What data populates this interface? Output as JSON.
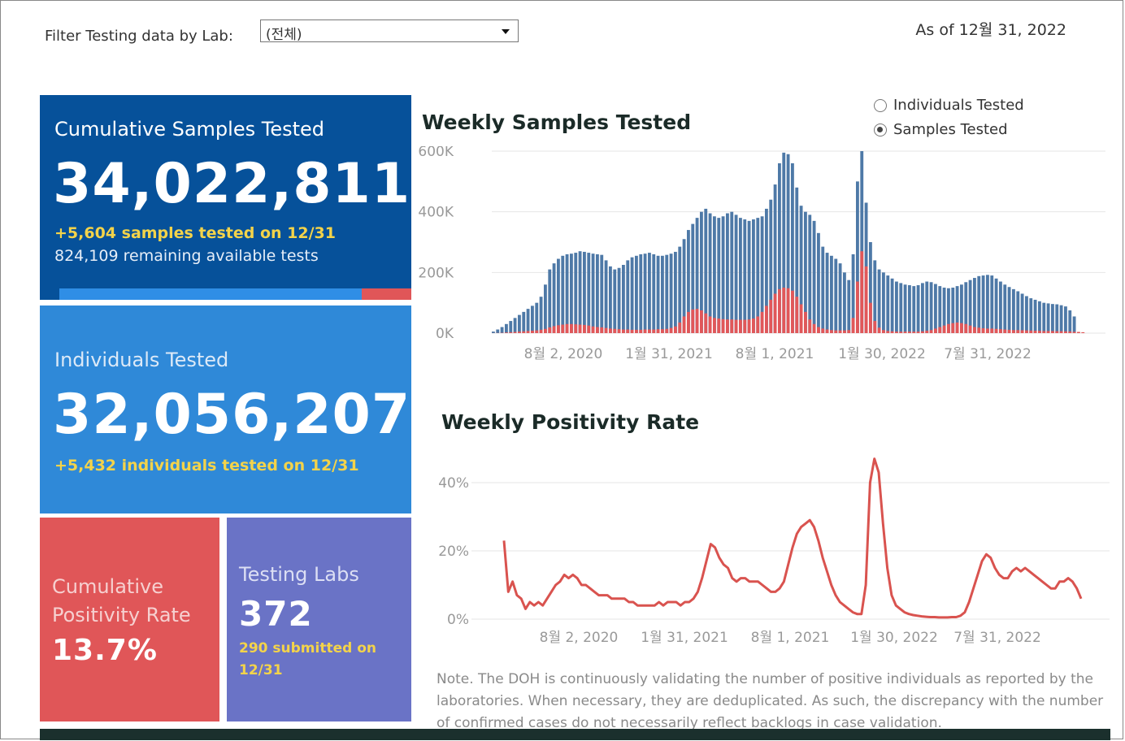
{
  "filter": {
    "label": "Filter Testing data by Lab:",
    "value": "(전체)"
  },
  "as_of": "As of 12월 31, 2022",
  "kpi": {
    "samples": {
      "title": "Cumulative Samples Tested",
      "value": "34,022,811",
      "delta": "+5,604 samples tested on 12/31",
      "remaining": "824,109 remaining available tests",
      "used_fraction": 0.86
    },
    "individuals": {
      "title": "Individuals Tested",
      "value": "32,056,207",
      "delta": "+5,432  individuals  tested on 12/31"
    },
    "positivity": {
      "title_line1": "Cumulative",
      "title_line2": "Positivity Rate",
      "value": "13.7%"
    },
    "labs": {
      "title": "Testing Labs",
      "value": "372",
      "delta_line1": "290 submitted on",
      "delta_line2": "12/31"
    }
  },
  "toggle": {
    "options": [
      "Individuals Tested",
      "Samples Tested"
    ],
    "selected": "Samples Tested"
  },
  "colors": {
    "samples_bar": "#4e79a7",
    "positive_bar": "#e15759",
    "line": "#d9534f"
  },
  "chart_data": [
    {
      "type": "bar",
      "title": "Weekly Samples Tested",
      "y_ticks": [
        "600K",
        "400K",
        "200K",
        "0K"
      ],
      "ylim": [
        0,
        600000
      ],
      "x_ticks": [
        "8월 2, 2020",
        "1월 31, 2021",
        "8월 1, 2021",
        "1월 30, 2022",
        "7월 31, 2022"
      ],
      "series": [
        {
          "name": "Samples",
          "values": [
            5000,
            12000,
            20000,
            30000,
            40000,
            50000,
            60000,
            70000,
            80000,
            90000,
            100000,
            120000,
            160000,
            210000,
            230000,
            245000,
            255000,
            260000,
            262000,
            265000,
            270000,
            268000,
            265000,
            262000,
            260000,
            258000,
            240000,
            220000,
            210000,
            215000,
            225000,
            240000,
            250000,
            255000,
            260000,
            262000,
            265000,
            260000,
            255000,
            255000,
            258000,
            262000,
            268000,
            285000,
            310000,
            340000,
            360000,
            380000,
            400000,
            410000,
            395000,
            385000,
            380000,
            385000,
            395000,
            400000,
            390000,
            380000,
            375000,
            370000,
            375000,
            380000,
            385000,
            410000,
            440000,
            490000,
            560000,
            595000,
            590000,
            560000,
            480000,
            420000,
            400000,
            390000,
            370000,
            330000,
            285000,
            265000,
            255000,
            245000,
            230000,
            200000,
            175000,
            260000,
            500000,
            600000,
            430000,
            300000,
            240000,
            210000,
            200000,
            190000,
            180000,
            170000,
            165000,
            160000,
            158000,
            155000,
            158000,
            165000,
            170000,
            168000,
            162000,
            155000,
            150000,
            148000,
            150000,
            155000,
            160000,
            168000,
            175000,
            182000,
            188000,
            190000,
            192000,
            190000,
            180000,
            170000,
            160000,
            152000,
            145000,
            138000,
            130000,
            122000,
            115000,
            110000,
            105000,
            100000,
            98000,
            96000,
            95000,
            92000,
            88000,
            75000,
            55000
          ]
        },
        {
          "name": "Positive",
          "values": [
            200,
            500,
            1000,
            2000,
            3000,
            4000,
            5000,
            6000,
            7000,
            8000,
            9000,
            11000,
            14000,
            19000,
            23000,
            26000,
            28000,
            30000,
            30000,
            29000,
            28000,
            27000,
            25000,
            22000,
            20000,
            19000,
            17000,
            15000,
            14000,
            13000,
            12000,
            12000,
            11000,
            11000,
            11000,
            12000,
            12000,
            12000,
            13000,
            13000,
            14000,
            17000,
            22000,
            35000,
            55000,
            70000,
            78000,
            80000,
            75000,
            65000,
            55000,
            50000,
            48000,
            46000,
            45000,
            45000,
            44000,
            44000,
            44000,
            45000,
            48000,
            55000,
            70000,
            90000,
            110000,
            130000,
            145000,
            150000,
            148000,
            140000,
            120000,
            95000,
            70000,
            45000,
            30000,
            20000,
            15000,
            12000,
            10000,
            9000,
            9000,
            9000,
            10000,
            50000,
            170000,
            270000,
            220000,
            100000,
            40000,
            18000,
            10000,
            7000,
            6000,
            5000,
            5000,
            5000,
            5000,
            5000,
            5000,
            6000,
            8000,
            10000,
            15000,
            20000,
            25000,
            30000,
            33000,
            35000,
            33000,
            30000,
            25000,
            20000,
            18000,
            16000,
            15000,
            15000,
            14000,
            13000,
            12000,
            11000,
            10000,
            10000,
            9500,
            9000,
            8500,
            8000,
            7500,
            7000,
            7000,
            7000,
            6500,
            6500,
            6000,
            5500,
            4500,
            4000,
            3000
          ]
        }
      ]
    },
    {
      "type": "line",
      "title": "Weekly Positivity Rate",
      "y_ticks": [
        "40%",
        "20%",
        "0%"
      ],
      "ylim": [
        0,
        50
      ],
      "x_ticks": [
        "8월 2, 2020",
        "1월 31, 2021",
        "8월 1, 2021",
        "1월 30, 2022",
        "7월 31, 2022"
      ],
      "series": [
        {
          "name": "Positivity",
          "values": [
            23,
            8,
            11,
            7,
            6,
            3,
            5,
            4,
            5,
            4,
            6,
            8,
            10,
            11,
            13,
            12,
            13,
            12,
            10,
            10,
            9,
            8,
            7,
            7,
            7,
            6,
            6,
            6,
            6,
            5,
            5,
            4,
            4,
            4,
            4,
            4,
            5,
            4,
            5,
            5,
            5,
            4,
            5,
            5,
            6,
            8,
            12,
            17,
            22,
            21,
            18,
            16,
            15,
            12,
            11,
            12,
            12,
            11,
            11,
            11,
            10,
            9,
            8,
            8,
            9,
            11,
            16,
            21,
            25,
            27,
            28,
            29,
            27,
            23,
            18,
            14,
            10,
            7,
            5,
            4,
            3,
            2,
            1.5,
            1.5,
            10,
            40,
            47,
            43,
            28,
            15,
            7,
            4,
            3,
            2,
            1.5,
            1.2,
            1,
            0.8,
            0.7,
            0.6,
            0.6,
            0.5,
            0.5,
            0.5,
            0.6,
            0.6,
            1,
            2,
            5,
            9,
            13,
            17,
            19,
            18,
            15,
            13,
            12,
            12,
            14,
            15,
            14,
            15,
            14,
            13,
            12,
            11,
            10,
            9,
            9,
            11,
            11,
            12,
            11,
            9,
            6
          ]
        }
      ]
    }
  ],
  "note": "Note. The DOH is continuously validating the number of positive individuals as reported by the laboratories. When necessary, they are deduplicated. As such, the discrepancy with the number of confirmed cases do not necessarily reflect backlogs in case validation."
}
